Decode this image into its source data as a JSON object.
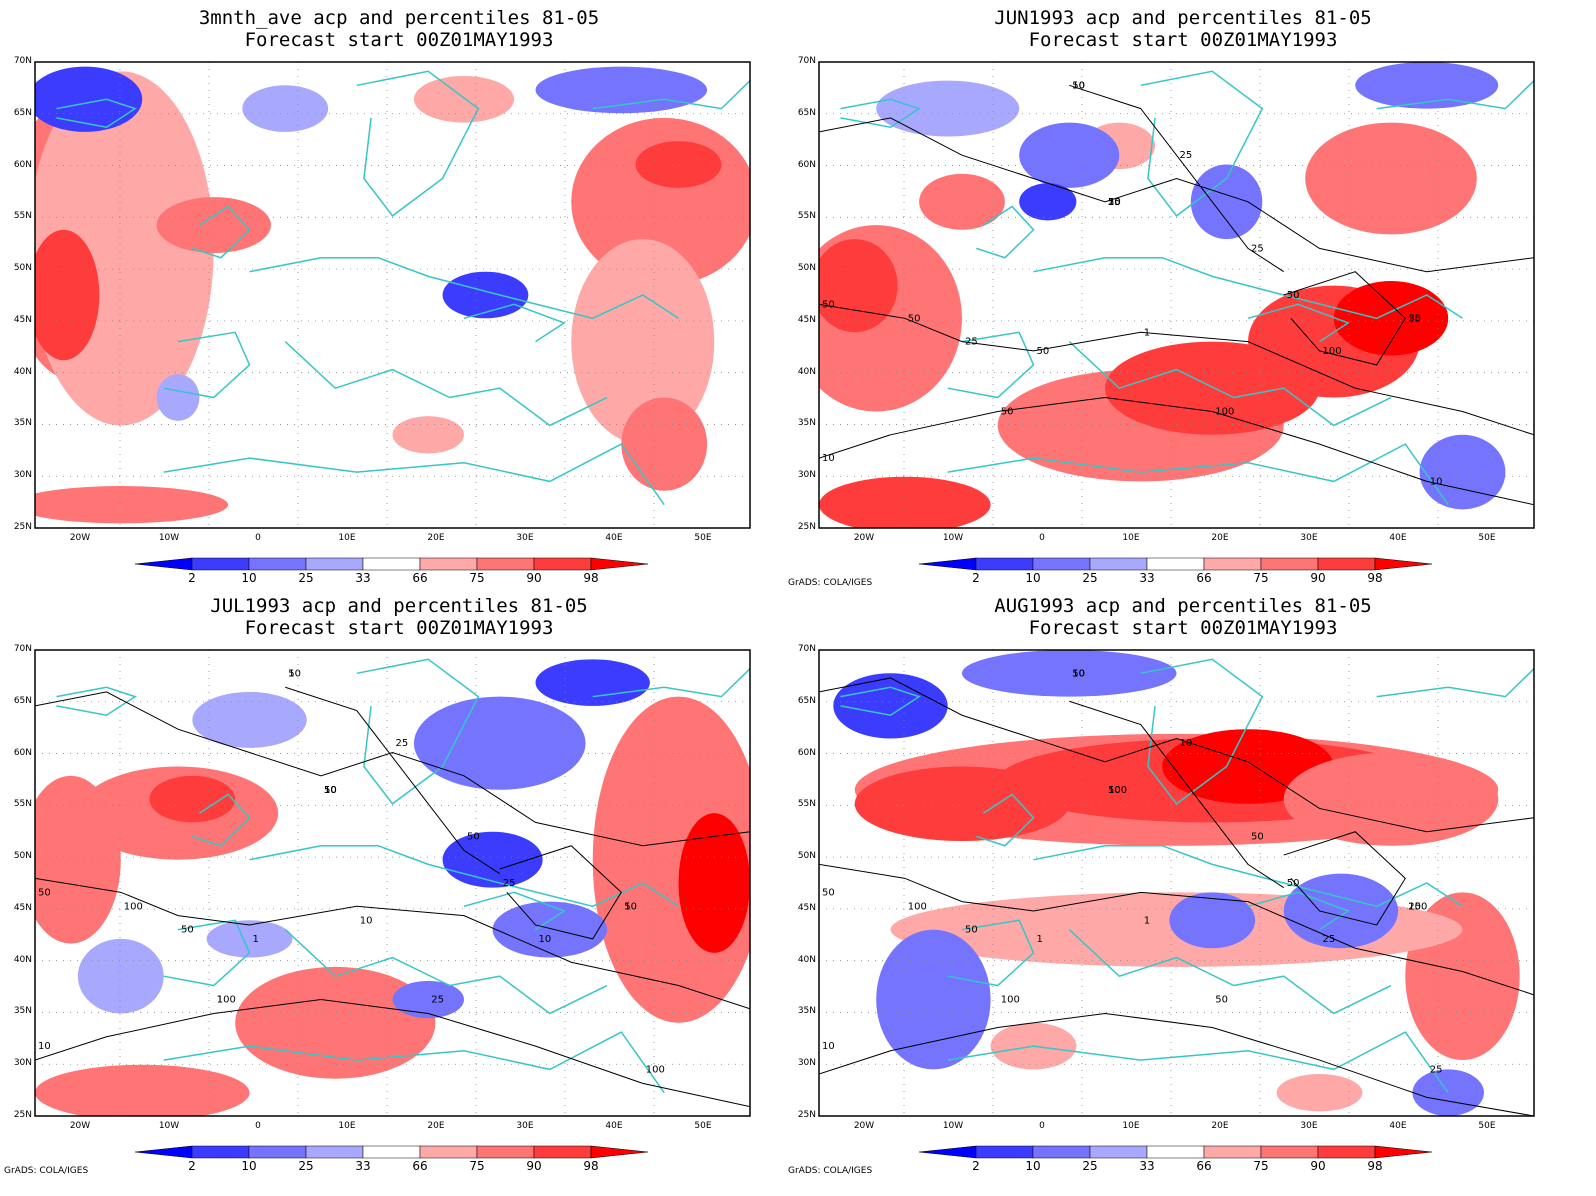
{
  "panels": [
    {
      "title1": "3mnth_ave acp and percentiles 81-05",
      "title2": "Forecast start 00Z01MAY1993",
      "credit": ""
    },
    {
      "title1": "JUN1993 acp and percentiles 81-05",
      "title2": "Forecast start 00Z01MAY1993",
      "credit": "GrADS: COLA/IGES"
    },
    {
      "title1": "JUL1993 acp and percentiles 81-05",
      "title2": "Forecast start 00Z01MAY1993",
      "credit": "GrADS: COLA/IGES"
    },
    {
      "title1": "AUG1993 acp and percentiles 81-05",
      "title2": "Forecast start 00Z01MAY1993",
      "credit": "GrADS: COLA/IGES"
    }
  ],
  "lat_labels": [
    "70N",
    "65N",
    "60N",
    "55N",
    "50N",
    "45N",
    "40N",
    "35N",
    "30N",
    "25N"
  ],
  "lon_labels": [
    "20W",
    "10W",
    "0",
    "10E",
    "20E",
    "30E",
    "40E",
    "50E"
  ],
  "colorbar": {
    "labels": [
      "2",
      "10",
      "25",
      "33",
      "66",
      "75",
      "90",
      "98"
    ],
    "colors": [
      "#0000ff",
      "#3c3cff",
      "#7474ff",
      "#a8a8ff",
      "#ffffff",
      "#ffa8a8",
      "#ff7474",
      "#ff3c3c",
      "#ff0000"
    ]
  },
  "colors": {
    "coast": "#36c6c6",
    "contour": "#000000"
  },
  "contour_labels": {
    "p1": [
      "50",
      "50",
      "50",
      "50",
      "50",
      "50",
      "100",
      "50",
      "25",
      "50",
      "25",
      "10",
      "25",
      "25",
      "100",
      "50",
      "10",
      "10",
      "10",
      "25",
      "1"
    ],
    "p2": [
      "50",
      "100",
      "50",
      "50",
      "50",
      "100",
      "25",
      "50",
      "50",
      "25",
      "50",
      "100",
      "10",
      "25",
      "10",
      "1",
      "10",
      "10",
      "1",
      "1",
      "10",
      "1"
    ],
    "p3": [
      "50",
      "100",
      "100",
      "50",
      "100",
      "100",
      "50",
      "50",
      "50",
      "50",
      "50",
      "25",
      "10",
      "10",
      "25",
      "1",
      "10",
      "1",
      "10",
      "25",
      "1"
    ]
  }
}
